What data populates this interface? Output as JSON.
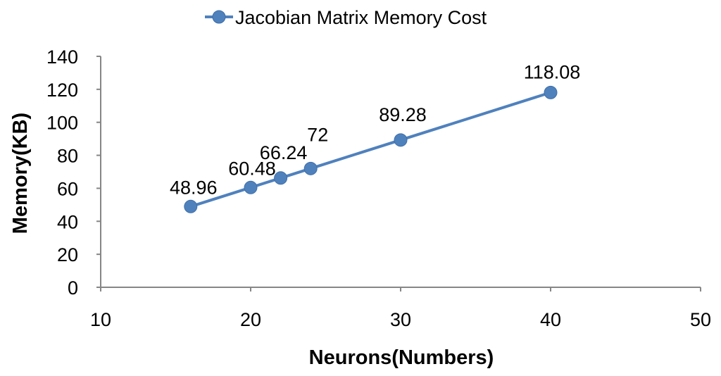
{
  "chart_data": {
    "type": "scatter",
    "series": [
      {
        "name": "Jacobian Matrix Memory Cost",
        "color": "#4F81BD",
        "points": [
          {
            "x": 16,
            "y": 48.96,
            "label": "48.96"
          },
          {
            "x": 20,
            "y": 60.48,
            "label": "60.48"
          },
          {
            "x": 22,
            "y": 66.24,
            "label": "66.24"
          },
          {
            "x": 24,
            "y": 72,
            "label": "72"
          },
          {
            "x": 30,
            "y": 89.28,
            "label": "89.28"
          },
          {
            "x": 40,
            "y": 118.08,
            "label": "118.08"
          }
        ]
      }
    ],
    "xlabel": "Neurons(Numbers)",
    "ylabel": "Memory(KB)",
    "xlim": [
      10,
      50
    ],
    "ylim": [
      0,
      140
    ],
    "x_ticks": [
      "10",
      "20",
      "30",
      "40",
      "50"
    ],
    "y_ticks": [
      "0",
      "20",
      "40",
      "60",
      "80",
      "100",
      "120",
      "140"
    ],
    "lines_connect_points": true,
    "grid": false,
    "legend": "top-center"
  }
}
